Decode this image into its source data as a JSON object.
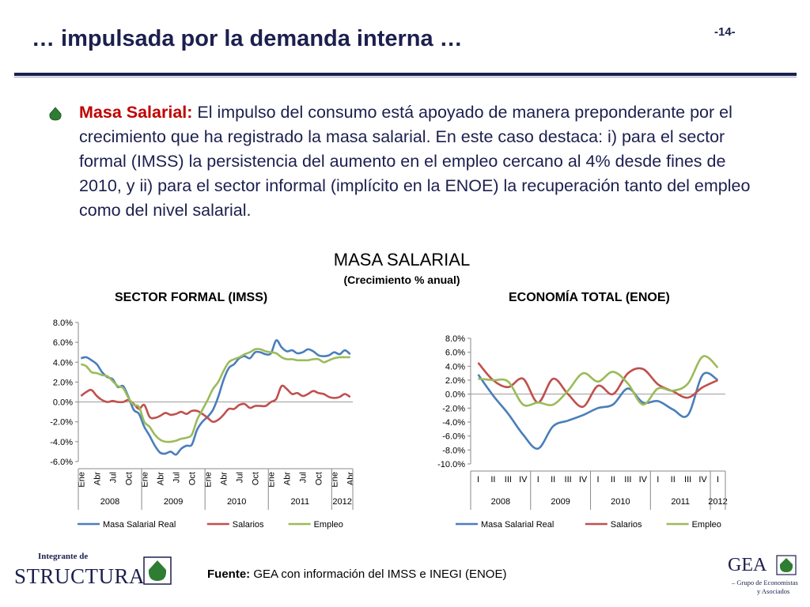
{
  "header": {
    "title": "… impulsada por la demanda interna …",
    "page": "-14-"
  },
  "paragraph": {
    "lead": "Masa Salarial:",
    "text": " El impulso del consumo está apoyado de manera preponderante por el crecimiento que ha registrado la masa salarial. En este caso destaca: i) para el sector formal (IMSS) la persistencia del aumento en el empleo cercano al 4% desde fines de 2010, y ii) para el sector informal (implícito en la ENOE) la recuperación tanto del empleo como del nivel salarial."
  },
  "chart_heading": {
    "title": "MASA SALARIAL",
    "subtitle": "(Crecimiento % anual)"
  },
  "colors": {
    "real": "#4a7ebb",
    "salarios": "#c0504d",
    "empleo": "#9bbb59",
    "accent": "#1c1f4e",
    "lead": "#c00000"
  },
  "footer": {
    "source_label": "Fuente:",
    "source_text": " GEA con información del IMSS e INEGI (ENOE)",
    "logo_left_top": "Integrante de",
    "logo_left_name": "STRUCTURA",
    "logo_right_name": "GEA",
    "logo_right_sub1": "– Grupo de Economistas",
    "logo_right_sub2": "y Asociados"
  },
  "chart_data": [
    {
      "type": "line",
      "title": "SECTOR FORMAL (IMSS)",
      "ylim": [
        -6,
        8
      ],
      "yticks": [
        "8.0%",
        "6.0%",
        "4.0%",
        "2.0%",
        "0.0%",
        "-2.0%",
        "-4.0%",
        "-6.0%"
      ],
      "x_tick_labels": [
        "Ene",
        "Abr",
        "Jul",
        "Oct",
        "Ene",
        "Abr",
        "Jul",
        "Oct",
        "Ene",
        "Abr",
        "Jul",
        "Oct",
        "Ene",
        "Abr",
        "Jul",
        "Oct",
        "Ene",
        "Abr"
      ],
      "years": [
        "2008",
        "2009",
        "2010",
        "2011",
        "2012"
      ],
      "legend": [
        "Masa Salarial Real",
        "Salarios",
        "Empleo"
      ],
      "series": [
        {
          "name": "Masa Salarial Real",
          "values": [
            4.4,
            4.5,
            4.2,
            3.8,
            3.0,
            2.5,
            2.3,
            1.5,
            1.6,
            0.5,
            -0.8,
            -1.2,
            -2.5,
            -3.4,
            -4.4,
            -5.1,
            -5.2,
            -5.0,
            -5.3,
            -4.7,
            -4.4,
            -4.3,
            -2.8,
            -2.0,
            -1.5,
            -0.8,
            0.5,
            2.2,
            3.4,
            3.8,
            4.4,
            4.6,
            4.4,
            5.0,
            5.0,
            4.8,
            4.9,
            6.2,
            5.5,
            5.1,
            5.2,
            4.9,
            5.0,
            5.3,
            5.1,
            4.7,
            4.6,
            4.7,
            5.0,
            4.8,
            5.2,
            4.8
          ]
        },
        {
          "name": "Salarios",
          "values": [
            0.6,
            1.0,
            1.2,
            0.6,
            0.2,
            0.0,
            0.1,
            0.0,
            0.0,
            0.2,
            -0.2,
            -0.7,
            -0.3,
            -1.5,
            -1.6,
            -1.4,
            -1.1,
            -1.3,
            -1.2,
            -1.0,
            -1.2,
            -0.9,
            -0.9,
            -1.2,
            -1.6,
            -2.0,
            -1.8,
            -1.3,
            -0.7,
            -0.7,
            -0.3,
            -0.2,
            -0.6,
            -0.4,
            -0.4,
            -0.4,
            0.0,
            0.3,
            1.6,
            1.3,
            0.8,
            0.9,
            0.6,
            0.8,
            1.1,
            0.9,
            0.8,
            0.5,
            0.4,
            0.5,
            0.8,
            0.5
          ]
        },
        {
          "name": "Empleo",
          "values": [
            3.8,
            3.6,
            3.0,
            2.9,
            2.7,
            2.6,
            2.1,
            1.6,
            1.4,
            0.4,
            -0.3,
            -0.5,
            -2.0,
            -2.5,
            -3.3,
            -3.8,
            -4.0,
            -4.0,
            -3.9,
            -3.7,
            -3.6,
            -3.3,
            -1.8,
            -0.8,
            0.2,
            1.3,
            2.0,
            3.1,
            4.0,
            4.3,
            4.5,
            4.8,
            5.0,
            5.3,
            5.3,
            5.1,
            5.0,
            4.9,
            4.5,
            4.3,
            4.3,
            4.2,
            4.2,
            4.2,
            4.3,
            4.3,
            4.0,
            4.2,
            4.4,
            4.5,
            4.5,
            4.5
          ]
        }
      ]
    },
    {
      "type": "line",
      "title": "ECONOMÍA TOTAL (ENOE)",
      "ylim": [
        -10,
        8
      ],
      "yticks": [
        "8.0%",
        "6.0%",
        "4.0%",
        "2.0%",
        "0.0%",
        "-2.0%",
        "-4.0%",
        "-6.0%",
        "-8.0%",
        "-10.0%"
      ],
      "x_tick_labels": [
        "I",
        "II",
        "III",
        "IV",
        "I",
        "II",
        "III",
        "IV",
        "I",
        "II",
        "III",
        "IV",
        "I",
        "II",
        "III",
        "IV",
        "I"
      ],
      "years": [
        "2008",
        "2009",
        "2010",
        "2011",
        "2012"
      ],
      "legend": [
        "Masa Salarial Real",
        "Salarios",
        "Empleo"
      ],
      "series": [
        {
          "name": "Masa Salarial Real",
          "values": [
            2.8,
            -0.2,
            -2.8,
            -5.8,
            -7.8,
            -4.6,
            -3.8,
            -3.0,
            -2.0,
            -1.5,
            0.8,
            -1.2,
            -1.0,
            -2.2,
            -3.0,
            2.8,
            2.0
          ]
        },
        {
          "name": "Salarios",
          "values": [
            4.5,
            2.0,
            1.0,
            2.2,
            -1.2,
            2.2,
            0.0,
            -1.8,
            1.2,
            0.0,
            3.0,
            3.6,
            1.4,
            0.4,
            -0.5,
            1.0,
            2.0
          ]
        },
        {
          "name": "Empleo",
          "values": [
            2.2,
            2.0,
            1.8,
            -1.5,
            -1.2,
            -1.5,
            0.5,
            3.0,
            1.8,
            3.2,
            1.5,
            -1.5,
            0.8,
            0.5,
            1.5,
            5.4,
            3.8
          ]
        }
      ]
    }
  ]
}
